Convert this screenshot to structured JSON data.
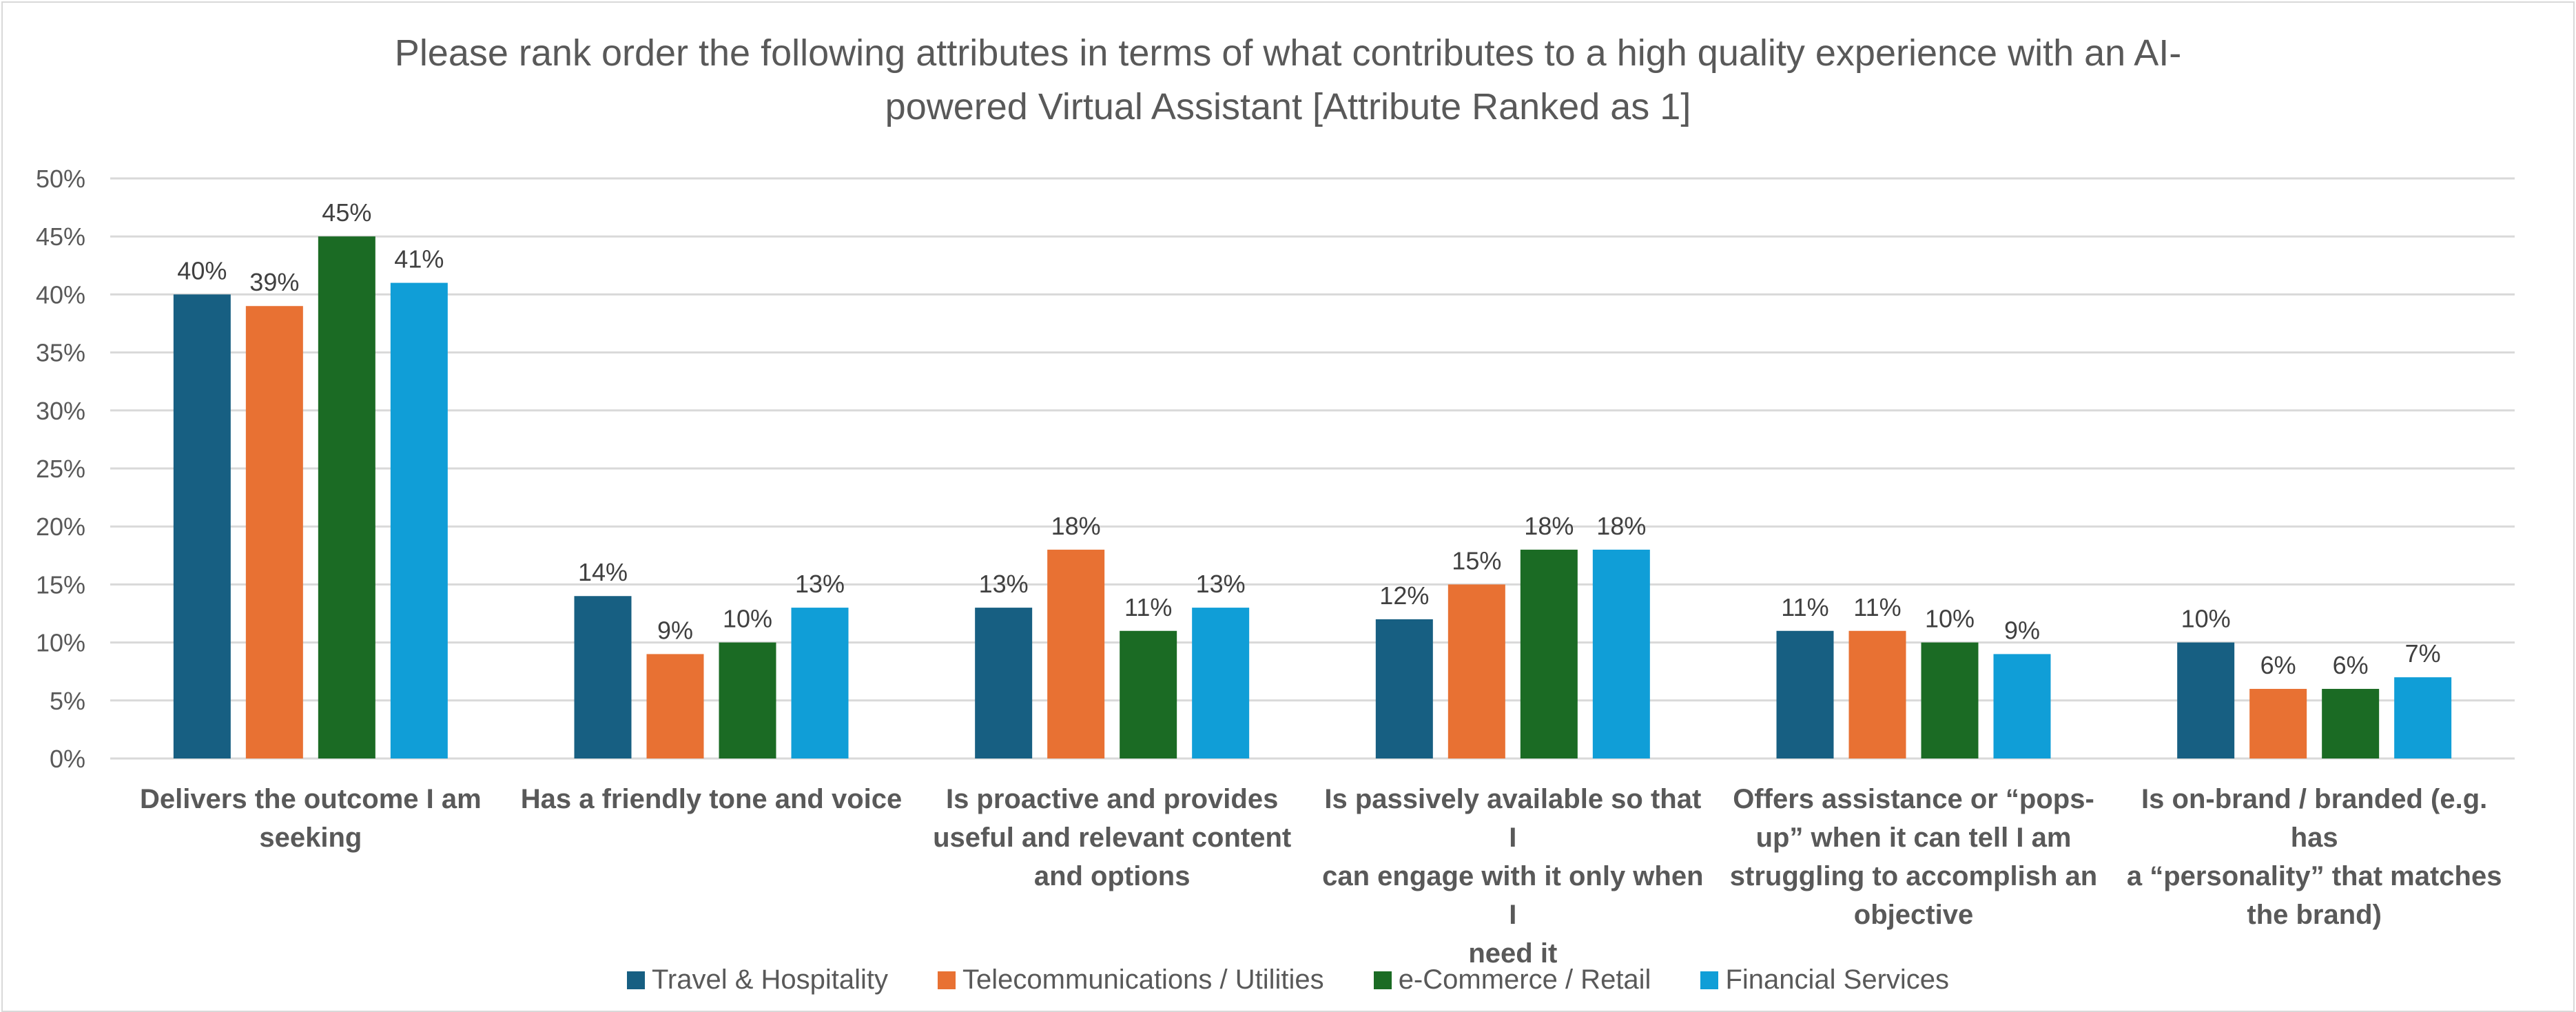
{
  "chart_data": {
    "type": "bar",
    "title": "Please rank order the following attributes in terms of what contributes to a high quality experience with an AI-powered Virtual Assistant [Attribute Ranked as 1]",
    "title_lines": [
      "Please rank order the following attributes in terms of what contributes to a high quality experience with an AI-",
      "powered Virtual Assistant [Attribute Ranked as 1]"
    ],
    "xlabel": "",
    "ylabel": "",
    "ylim": [
      0,
      50
    ],
    "yticks": [
      0,
      5,
      10,
      15,
      20,
      25,
      30,
      35,
      40,
      45,
      50
    ],
    "ytick_format": "percent",
    "grid": true,
    "legend_position": "bottom",
    "categories": [
      "Delivers the outcome I am seeking",
      "Has a friendly tone and voice",
      "Is proactive and provides useful and relevant content and options",
      "Is passively available so that I can engage with it only when I need it",
      "Offers assistance or “pops-up” when it can tell I am struggling to accomplish an objective",
      "Is on-brand / branded (e.g. has a “personality” that matches the brand)"
    ],
    "category_lines": [
      [
        "Delivers the outcome I am",
        "seeking"
      ],
      [
        "Has a friendly tone and voice"
      ],
      [
        "Is proactive and provides",
        "useful and relevant content",
        "and options"
      ],
      [
        "Is passively available so that I",
        "can engage with it only when I",
        "need it"
      ],
      [
        "Offers assistance or “pops-",
        "up” when it can tell I am",
        "struggling to accomplish an",
        "objective"
      ],
      [
        "Is on-brand / branded (e.g. has",
        "a “personality” that matches",
        "the brand)"
      ]
    ],
    "series": [
      {
        "name": "Travel & Hospitality",
        "color": "#175f82",
        "values": [
          40,
          14,
          13,
          12,
          11,
          10
        ]
      },
      {
        "name": "Telecommunications / Utilities",
        "color": "#e87133",
        "values": [
          39,
          9,
          18,
          15,
          11,
          6
        ]
      },
      {
        "name": "e-Commerce / Retail",
        "color": "#1b6b24",
        "values": [
          45,
          10,
          11,
          18,
          10,
          6
        ]
      },
      {
        "name": "Financial Services",
        "color": "#109ed7",
        "values": [
          41,
          13,
          13,
          18,
          9,
          7
        ]
      }
    ]
  }
}
